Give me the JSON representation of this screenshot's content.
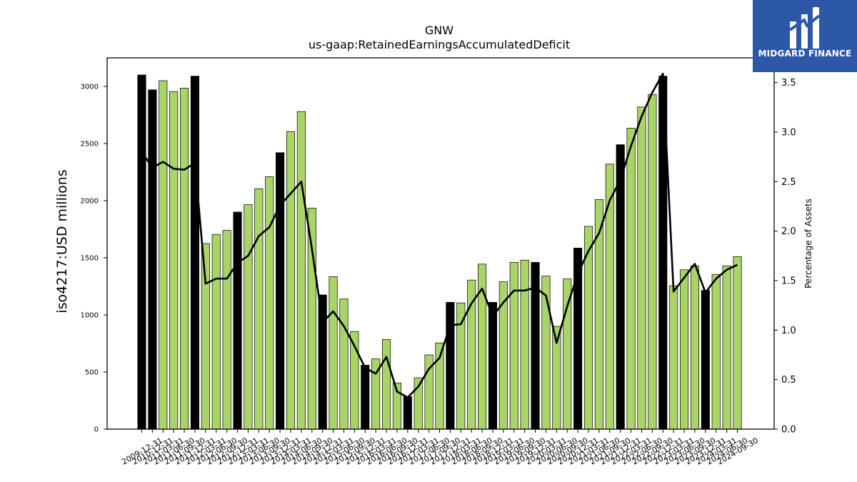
{
  "chart_data": {
    "type": "bar",
    "title": "GNW",
    "subtitle": "us-gaap:RetainedEarningsAccumulatedDeficit",
    "ylabel": "iso4217:USD  millions",
    "y2label": "Percentage of Assets",
    "ylim": [
      0,
      3250
    ],
    "y2lim": [
      0,
      3.75
    ],
    "yticks": [
      0,
      500,
      1000,
      1500,
      2000,
      2500,
      3000
    ],
    "y2ticks": [
      "0.0",
      "0.5",
      "1.0",
      "1.5",
      "2.0",
      "2.5",
      "3.0",
      "3.5"
    ],
    "categories": [
      "2009-12-31",
      "2010-12-31",
      "2011-03-31",
      "2011-06-30",
      "2011-09-30",
      "2011-12-31",
      "2012-03-31",
      "2012-06-30",
      "2012-09-30",
      "2012-12-31",
      "2013-03-31",
      "2013-06-30",
      "2013-09-30",
      "2013-12-31",
      "2014-03-31",
      "2014-06-30",
      "2014-09-30",
      "2014-12-31",
      "2015-03-31",
      "2015-06-30",
      "2015-09-30",
      "2015-12-31",
      "2016-03-31",
      "2016-06-30",
      "2016-09-30",
      "2016-12-31",
      "2017-03-31",
      "2017-06-30",
      "2017-09-30",
      "2017-12-31",
      "2018-03-31",
      "2018-06-30",
      "2018-09-30",
      "2018-12-31",
      "2019-03-31",
      "2019-06-30",
      "2019-09-30",
      "2019-12-31",
      "2020-03-31",
      "2020-06-30",
      "2020-09-30",
      "2020-12-31",
      "2021-03-31",
      "2021-06-30",
      "2021-09-30",
      "2021-12-31",
      "2022-03-31",
      "2022-06-30",
      "2022-09-30",
      "2022-12-31",
      "2023-03-31",
      "2023-06-30",
      "2023-09-30",
      "2023-12-31",
      "2024-03-31",
      "2024-06-30",
      "2024-09-30"
    ],
    "values": [
      3100,
      2970,
      3050,
      2955,
      2985,
      3090,
      1625,
      1705,
      1740,
      1900,
      1965,
      2105,
      2210,
      2420,
      2605,
      2780,
      1935,
      1175,
      1335,
      1140,
      855,
      560,
      615,
      785,
      405,
      285,
      450,
      650,
      755,
      1110,
      1105,
      1305,
      1445,
      1110,
      1290,
      1460,
      1480,
      1460,
      1340,
      900,
      1315,
      1585,
      1775,
      2010,
      2320,
      2490,
      2635,
      2820,
      2930,
      3090,
      1255,
      1395,
      1430,
      1215,
      1355,
      1430,
      1510
    ],
    "annual": [
      true,
      true,
      false,
      false,
      false,
      true,
      false,
      false,
      false,
      true,
      false,
      false,
      false,
      true,
      false,
      false,
      false,
      true,
      false,
      false,
      false,
      true,
      false,
      false,
      false,
      true,
      false,
      false,
      false,
      true,
      false,
      false,
      false,
      true,
      false,
      false,
      false,
      true,
      false,
      false,
      false,
      true,
      false,
      false,
      false,
      true,
      false,
      false,
      false,
      true,
      false,
      false,
      false,
      true,
      false,
      false,
      false
    ],
    "pct_assets": [
      2.8,
      2.64,
      2.7,
      2.63,
      2.62,
      2.69,
      1.47,
      1.52,
      1.52,
      1.68,
      1.75,
      1.95,
      2.04,
      2.26,
      2.38,
      2.5,
      1.82,
      1.08,
      1.19,
      1.04,
      0.84,
      0.62,
      0.56,
      0.73,
      0.38,
      0.32,
      0.43,
      0.61,
      0.72,
      1.05,
      1.06,
      1.27,
      1.42,
      1.14,
      1.28,
      1.4,
      1.4,
      1.43,
      1.35,
      0.87,
      1.24,
      1.57,
      1.8,
      1.98,
      2.31,
      2.52,
      2.86,
      3.16,
      3.4,
      3.59,
      1.39,
      1.53,
      1.67,
      1.38,
      1.52,
      1.61,
      1.66
    ],
    "colors": {
      "annual_bar": "#000000",
      "quarter_bar": "#a9d466",
      "line": "#000000"
    },
    "legend": "none",
    "grid": false
  },
  "logo": {
    "text": "MIDGARD FINANCE",
    "background": "#2d58a8"
  }
}
